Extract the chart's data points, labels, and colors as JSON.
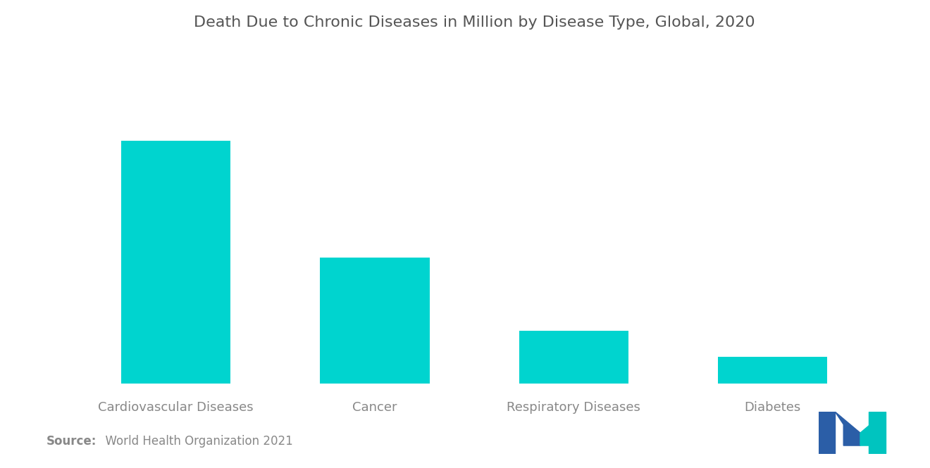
{
  "title": "Death Due to Chronic Diseases in Million by Disease Type, Global, 2020",
  "categories": [
    "Cardiovascular Diseases",
    "Cancer",
    "Respiratory Diseases",
    "Diabetes"
  ],
  "values": [
    17.9,
    9.3,
    3.9,
    2.0
  ],
  "bar_color": "#00D4CF",
  "background_color": "#ffffff",
  "title_fontsize": 16,
  "label_fontsize": 13,
  "label_color": "#888888",
  "title_color": "#555555",
  "source_bold": "Source:",
  "source_rest": "  World Health Organization 2021",
  "source_fontsize": 12,
  "logo_blue": "#2B5EA7",
  "logo_teal": "#00C4BF"
}
